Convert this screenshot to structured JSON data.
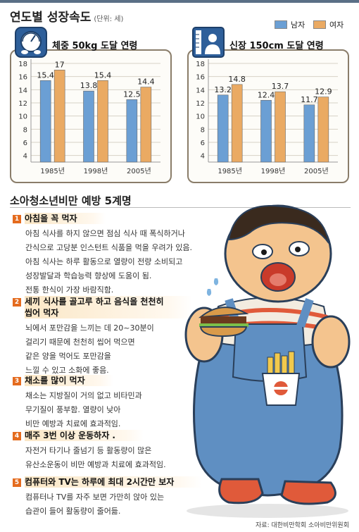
{
  "header": {
    "title": "연도별 성장속도",
    "unit": "(단위: 세)"
  },
  "legend": {
    "male": "남자",
    "female": "여자"
  },
  "colors": {
    "male": "#6b9fd4",
    "female": "#eaaa63",
    "accent": "#e46b1e"
  },
  "chart_data": [
    {
      "type": "bar",
      "title": "체중 50kg 도달 연령",
      "categories": [
        "1985년",
        "1998년",
        "2005년"
      ],
      "series": [
        {
          "name": "남자",
          "values": [
            15.4,
            13.8,
            12.5
          ]
        },
        {
          "name": "여자",
          "values": [
            17,
            15.4,
            14.4
          ]
        }
      ],
      "ylim": [
        3,
        18
      ],
      "yticks": [
        4,
        6,
        8,
        10,
        12,
        14,
        16,
        18
      ],
      "grid": true
    },
    {
      "type": "bar",
      "title": "신장 150cm 도달 연령",
      "categories": [
        "1985년",
        "1998년",
        "2005년"
      ],
      "series": [
        {
          "name": "남자",
          "values": [
            13.2,
            12.4,
            11.7
          ]
        },
        {
          "name": "여자",
          "values": [
            14.8,
            13.7,
            12.9
          ]
        }
      ],
      "ylim": [
        3,
        18
      ],
      "yticks": [
        4,
        6,
        8,
        10,
        12,
        14,
        16,
        18
      ],
      "grid": true
    }
  ],
  "section": {
    "title": "소아청소년비만 예방 5계명"
  },
  "tips": [
    {
      "num": "1",
      "title": "아침을 꼭 먹자",
      "body": [
        "아침 식사를 하지 않으면 점심 식사 때 폭식하거나",
        "간식으로 고당분 인스턴트 식품을 먹을 우려가 있음.",
        "아침 식사는 하루 활동으로 열량이 전량 소비되고",
        "성장발달과 학습능력 향상에 도움이 됨.",
        "전통 한식이 가장 바람직함."
      ]
    },
    {
      "num": "2",
      "title": [
        "세끼 식사를 골고루 하고 음식을 천천히",
        "씹어 먹자"
      ],
      "body": [
        "뇌에서 포만감을 느끼는 데 20~30분이",
        "걸리기 때문에 천천히 씹어 먹으면",
        "같은 양을 먹어도 포만감을",
        "느낄 수 있고 소화에 좋음."
      ]
    },
    {
      "num": "3",
      "title": "채소를 많이 먹자",
      "body": [
        "채소는 지방질이 거의 없고 비타민과",
        "무기질이 풍부함. 열량이 낮아",
        "비만 예방과 치료에 효과적임."
      ]
    },
    {
      "num": "4",
      "title": "매주 3번 이상 운동하자 .",
      "body": [
        "자전거 타기나 줄넘기 등 활동량이 많은",
        "유산소운동이 비만 예방과 치료에 효과적임."
      ]
    },
    {
      "num": "5",
      "title": "컴퓨터와 TV는 하루에 최대 2시간만 보자",
      "body": [
        "컴퓨터나 TV를 자주 보면 가만히 앉아 있는",
        "습관이 들어 활동량이 줄어듦."
      ]
    }
  ],
  "source": "자료: 대한비만학회 소아비만위원회"
}
